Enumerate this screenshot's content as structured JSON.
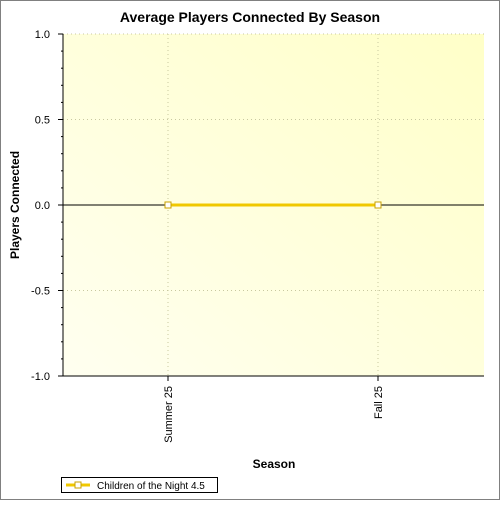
{
  "chart_data": {
    "type": "line",
    "title": "Average Players Connected By Season",
    "xlabel": "Season",
    "ylabel": "Players Connected",
    "categories": [
      "Summer 25",
      "Fall 25"
    ],
    "series": [
      {
        "name": "Children of the Night 4.5",
        "values": [
          0,
          0
        ],
        "color": "#f0c800"
      }
    ],
    "ylim": [
      -1.0,
      1.0
    ],
    "yticks": [
      1.0,
      0.5,
      0.0,
      -0.5,
      -1.0
    ],
    "ytick_labels": [
      "1.0",
      "0.5",
      "0.0",
      "-0.5",
      "-1.0"
    ],
    "grid": true,
    "legend_position": "bottom-left"
  },
  "colors": {
    "plot_bg_start": "#fffff0",
    "plot_bg_end": "#ffffc8",
    "grid": "#c8c8a0",
    "frame": "#808080"
  }
}
